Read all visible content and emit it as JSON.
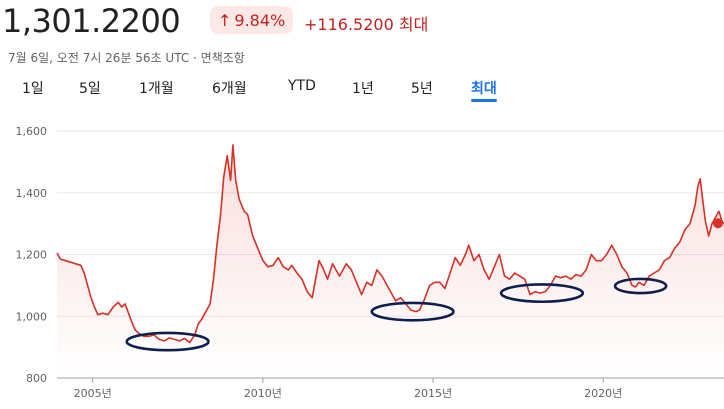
{
  "header": {
    "price": "1,301.2200",
    "change_percent": "9.84%",
    "change_abs": "+116.5200",
    "range_label": "최대",
    "timestamp": "7월 6일, 오전 7시 26분 56초 UTC · 면책조항",
    "accent_color": "#c5221f",
    "badge_bg": "#fce8e6"
  },
  "tabs": [
    {
      "label": "1일",
      "active": false
    },
    {
      "label": "5일",
      "active": false
    },
    {
      "label": "1개월",
      "active": false
    },
    {
      "label": "6개월",
      "active": false
    },
    {
      "label": "YTD",
      "active": false
    },
    {
      "label": "1년",
      "active": false
    },
    {
      "label": "5년",
      "active": false
    },
    {
      "label": "최대",
      "active": true
    }
  ],
  "chart_data": {
    "type": "line",
    "title": "",
    "xlabel": "",
    "ylabel": "",
    "ylim": [
      800,
      1600
    ],
    "y_ticks": [
      800,
      1000,
      1200,
      1400,
      1600
    ],
    "y_tick_labels": [
      "800",
      "1,000",
      "1,200",
      "1,400",
      "1,600"
    ],
    "x_ticks": [
      2005,
      2010,
      2015,
      2020
    ],
    "x_tick_labels": [
      "2005년",
      "2010년",
      "2015년",
      "2020년"
    ],
    "xlim": [
      2003.95,
      2023.55
    ],
    "grid": "horizontal",
    "line_color": "#d93025",
    "series": [
      {
        "points": [
          [
            2003.95,
            1205
          ],
          [
            2004.05,
            1185
          ],
          [
            2004.2,
            1180
          ],
          [
            2004.35,
            1175
          ],
          [
            2004.5,
            1170
          ],
          [
            2004.65,
            1165
          ],
          [
            2004.75,
            1140
          ],
          [
            2004.85,
            1100
          ],
          [
            2004.95,
            1060
          ],
          [
            2005.05,
            1030
          ],
          [
            2005.15,
            1005
          ],
          [
            2005.3,
            1010
          ],
          [
            2005.45,
            1005
          ],
          [
            2005.6,
            1030
          ],
          [
            2005.75,
            1045
          ],
          [
            2005.85,
            1030
          ],
          [
            2005.95,
            1040
          ],
          [
            2006.05,
            1010
          ],
          [
            2006.15,
            980
          ],
          [
            2006.25,
            955
          ],
          [
            2006.35,
            945
          ],
          [
            2006.5,
            935
          ],
          [
            2006.65,
            935
          ],
          [
            2006.8,
            940
          ],
          [
            2006.95,
            925
          ],
          [
            2007.1,
            920
          ],
          [
            2007.25,
            930
          ],
          [
            2007.4,
            925
          ],
          [
            2007.55,
            920
          ],
          [
            2007.7,
            928
          ],
          [
            2007.85,
            915
          ],
          [
            2008.0,
            940
          ],
          [
            2008.1,
            975
          ],
          [
            2008.2,
            990
          ],
          [
            2008.3,
            1010
          ],
          [
            2008.45,
            1040
          ],
          [
            2008.55,
            1120
          ],
          [
            2008.65,
            1230
          ],
          [
            2008.75,
            1320
          ],
          [
            2008.85,
            1450
          ],
          [
            2008.95,
            1520
          ],
          [
            2009.05,
            1440
          ],
          [
            2009.12,
            1555
          ],
          [
            2009.2,
            1440
          ],
          [
            2009.3,
            1380
          ],
          [
            2009.45,
            1340
          ],
          [
            2009.55,
            1330
          ],
          [
            2009.7,
            1260
          ],
          [
            2009.85,
            1220
          ],
          [
            2010.0,
            1180
          ],
          [
            2010.15,
            1160
          ],
          [
            2010.3,
            1165
          ],
          [
            2010.45,
            1190
          ],
          [
            2010.6,
            1160
          ],
          [
            2010.75,
            1150
          ],
          [
            2010.85,
            1165
          ],
          [
            2011.0,
            1140
          ],
          [
            2011.15,
            1120
          ],
          [
            2011.3,
            1080
          ],
          [
            2011.45,
            1060
          ],
          [
            2011.55,
            1120
          ],
          [
            2011.65,
            1180
          ],
          [
            2011.75,
            1160
          ],
          [
            2011.9,
            1120
          ],
          [
            2012.05,
            1170
          ],
          [
            2012.25,
            1130
          ],
          [
            2012.45,
            1170
          ],
          [
            2012.6,
            1150
          ],
          [
            2012.75,
            1110
          ],
          [
            2012.9,
            1070
          ],
          [
            2013.05,
            1110
          ],
          [
            2013.2,
            1100
          ],
          [
            2013.35,
            1150
          ],
          [
            2013.5,
            1130
          ],
          [
            2013.65,
            1100
          ],
          [
            2013.8,
            1070
          ],
          [
            2013.9,
            1050
          ],
          [
            2014.05,
            1060
          ],
          [
            2014.2,
            1040
          ],
          [
            2014.35,
            1020
          ],
          [
            2014.5,
            1015
          ],
          [
            2014.6,
            1020
          ],
          [
            2014.75,
            1055
          ],
          [
            2014.9,
            1100
          ],
          [
            2015.05,
            1110
          ],
          [
            2015.2,
            1110
          ],
          [
            2015.35,
            1090
          ],
          [
            2015.5,
            1140
          ],
          [
            2015.65,
            1190
          ],
          [
            2015.8,
            1165
          ],
          [
            2015.95,
            1200
          ],
          [
            2016.05,
            1230
          ],
          [
            2016.2,
            1180
          ],
          [
            2016.35,
            1200
          ],
          [
            2016.5,
            1150
          ],
          [
            2016.65,
            1120
          ],
          [
            2016.8,
            1160
          ],
          [
            2016.95,
            1200
          ],
          [
            2017.1,
            1130
          ],
          [
            2017.25,
            1120
          ],
          [
            2017.4,
            1140
          ],
          [
            2017.55,
            1130
          ],
          [
            2017.7,
            1120
          ],
          [
            2017.85,
            1070
          ],
          [
            2018.0,
            1080
          ],
          [
            2018.15,
            1075
          ],
          [
            2018.3,
            1080
          ],
          [
            2018.45,
            1100
          ],
          [
            2018.6,
            1130
          ],
          [
            2018.75,
            1125
          ],
          [
            2018.9,
            1130
          ],
          [
            2019.05,
            1120
          ],
          [
            2019.2,
            1135
          ],
          [
            2019.35,
            1130
          ],
          [
            2019.5,
            1150
          ],
          [
            2019.65,
            1200
          ],
          [
            2019.8,
            1180
          ],
          [
            2019.95,
            1180
          ],
          [
            2020.1,
            1200
          ],
          [
            2020.25,
            1230
          ],
          [
            2020.4,
            1200
          ],
          [
            2020.55,
            1160
          ],
          [
            2020.7,
            1140
          ],
          [
            2020.85,
            1100
          ],
          [
            2020.95,
            1095
          ],
          [
            2021.05,
            1110
          ],
          [
            2021.2,
            1100
          ],
          [
            2021.35,
            1130
          ],
          [
            2021.5,
            1140
          ],
          [
            2021.65,
            1150
          ],
          [
            2021.8,
            1180
          ],
          [
            2021.95,
            1190
          ],
          [
            2022.1,
            1220
          ],
          [
            2022.25,
            1240
          ],
          [
            2022.4,
            1280
          ],
          [
            2022.55,
            1300
          ],
          [
            2022.7,
            1360
          ],
          [
            2022.78,
            1420
          ],
          [
            2022.85,
            1445
          ],
          [
            2022.92,
            1380
          ],
          [
            2023.0,
            1310
          ],
          [
            2023.1,
            1260
          ],
          [
            2023.2,
            1300
          ],
          [
            2023.3,
            1320
          ],
          [
            2023.4,
            1340
          ],
          [
            2023.5,
            1305
          ],
          [
            2023.55,
            1301.22
          ]
        ]
      }
    ],
    "highlight_ellipses": [
      {
        "x_center": 2007.2,
        "y_center": 918,
        "x_half_width": 1.2,
        "y_half_height": 28
      },
      {
        "x_center": 2014.4,
        "y_center": 1015,
        "x_half_width": 1.2,
        "y_half_height": 28
      },
      {
        "x_center": 2018.2,
        "y_center": 1075,
        "x_half_width": 1.2,
        "y_half_height": 28
      },
      {
        "x_center": 2021.1,
        "y_center": 1098,
        "x_half_width": 0.75,
        "y_half_height": 23
      }
    ],
    "ellipse_color": "#0d1f4f"
  }
}
